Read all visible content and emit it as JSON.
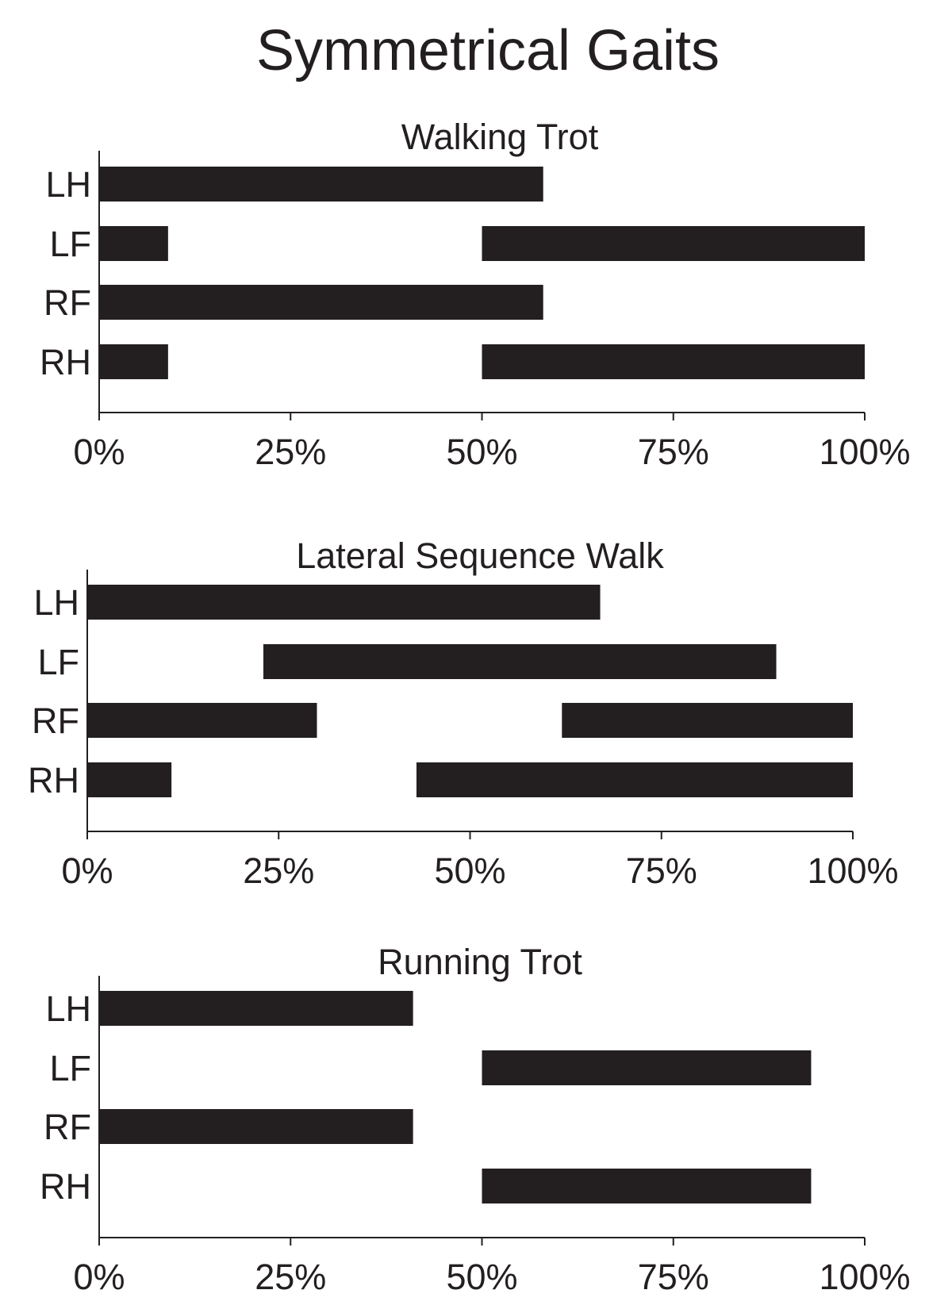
{
  "title": "Symmetrical Gaits",
  "chart_data": [
    {
      "type": "bar",
      "title": "Walking Trot",
      "categories": [
        "LH",
        "LF",
        "RF",
        "RH"
      ],
      "xlim": [
        0,
        100
      ],
      "xticks": [
        "0%",
        "25%",
        "50%",
        "75%",
        "100%"
      ],
      "stance_intervals": [
        [
          [
            0,
            58
          ]
        ],
        [
          [
            0,
            9
          ],
          [
            50,
            100
          ]
        ],
        [
          [
            0,
            58
          ]
        ],
        [
          [
            0,
            9
          ],
          [
            50,
            100
          ]
        ]
      ],
      "bar_color": "#231f20",
      "grid": false
    },
    {
      "type": "bar",
      "title": "Lateral Sequence Walk",
      "categories": [
        "LH",
        "LF",
        "RF",
        "RH"
      ],
      "xlim": [
        0,
        100
      ],
      "xticks": [
        "0%",
        "25%",
        "50%",
        "75%",
        "100%"
      ],
      "stance_intervals": [
        [
          [
            0,
            67
          ]
        ],
        [
          [
            23,
            90
          ]
        ],
        [
          [
            0,
            30
          ],
          [
            62,
            100
          ]
        ],
        [
          [
            0,
            11
          ],
          [
            43,
            100
          ]
        ]
      ],
      "bar_color": "#231f20",
      "grid": false
    },
    {
      "type": "bar",
      "title": "Running Trot",
      "categories": [
        "LH",
        "LF",
        "RF",
        "RH"
      ],
      "xlim": [
        0,
        100
      ],
      "xticks": [
        "0%",
        "25%",
        "50%",
        "75%",
        "100%"
      ],
      "stance_intervals": [
        [
          [
            0,
            41
          ]
        ],
        [
          [
            50,
            93
          ]
        ],
        [
          [
            0,
            41
          ]
        ],
        [
          [
            50,
            93
          ]
        ]
      ],
      "bar_color": "#231f20",
      "grid": false
    }
  ]
}
